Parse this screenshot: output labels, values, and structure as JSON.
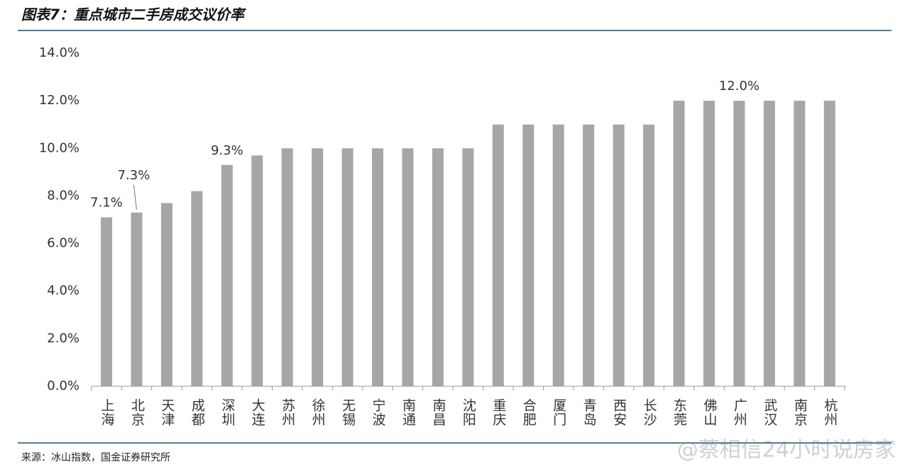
{
  "chart_data": {
    "type": "bar",
    "title": "图表7：重点城市二手房成交议价率",
    "source": "来源：冰山指数，国金证券研究所",
    "watermark": "@蔡相信24小时说房家",
    "categories": [
      "上海",
      "北京",
      "天津",
      "成都",
      "深圳",
      "大连",
      "苏州",
      "徐州",
      "无锡",
      "宁波",
      "南通",
      "南昌",
      "沈阳",
      "重庆",
      "合肥",
      "厦门",
      "青岛",
      "西安",
      "长沙",
      "东莞",
      "佛山",
      "广州",
      "武汉",
      "南京",
      "杭州"
    ],
    "values": [
      7.1,
      7.3,
      7.7,
      8.2,
      9.3,
      9.7,
      10,
      10,
      10,
      10,
      10,
      10,
      10,
      11,
      11,
      11,
      11,
      11,
      11,
      12,
      12,
      12,
      12,
      12,
      12
    ],
    "value_labels": [
      "7.1%",
      "7.3%",
      null,
      null,
      "9.3%",
      null,
      null,
      null,
      null,
      null,
      null,
      null,
      null,
      null,
      null,
      null,
      null,
      null,
      null,
      null,
      null,
      "12.0%",
      null,
      null,
      null
    ],
    "color": "#a6a6a6",
    "ylim": [
      0,
      14
    ],
    "yticks": [
      {
        "value": 0,
        "label": "0.0%"
      },
      {
        "value": 2,
        "label": "2.0%"
      },
      {
        "value": 4,
        "label": "4.0%"
      },
      {
        "value": 6,
        "label": "6.0%"
      },
      {
        "value": 8,
        "label": "8.0%"
      },
      {
        "value": 10,
        "label": "10.0%"
      },
      {
        "value": 12,
        "label": "12.0%"
      },
      {
        "value": 14,
        "label": "14.0%"
      }
    ],
    "grid": false
  }
}
